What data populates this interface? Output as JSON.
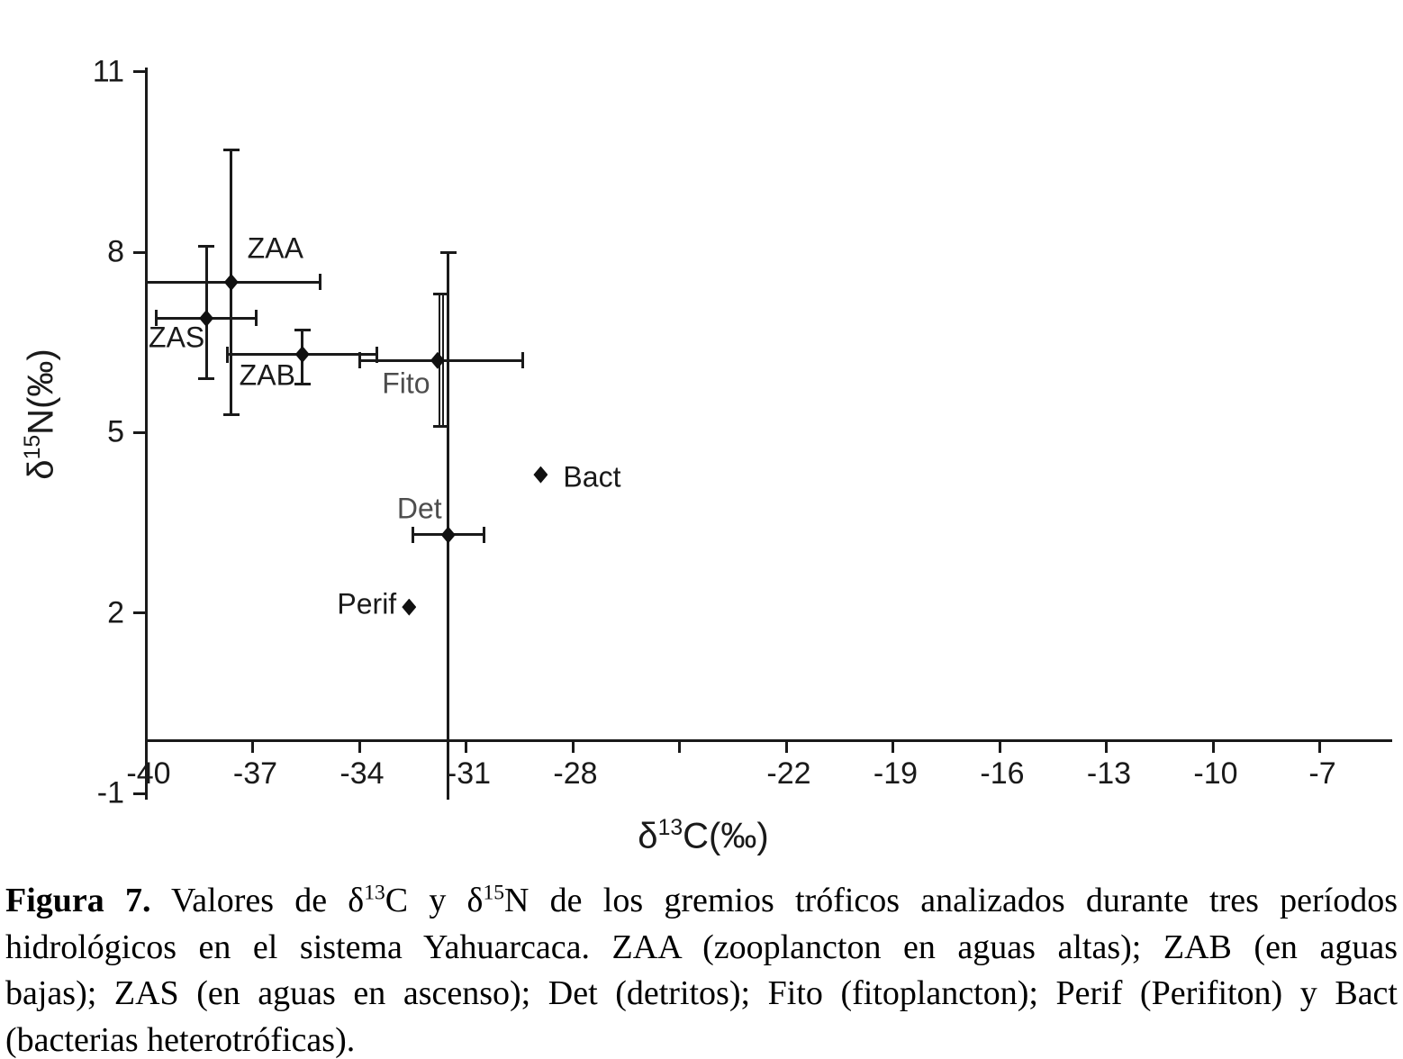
{
  "colors": {
    "background": "#ffffff",
    "axis": "#1a1a1a",
    "marker": "#111111",
    "label_dark": "#1a1a1a",
    "label_gray": "#4d4d4d",
    "caption_text": "#000000"
  },
  "chart_data": {
    "type": "scatter",
    "title": "",
    "xlabel": "δ13C(‰)",
    "ylabel": "δ15N(‰)",
    "xlabel_segments": [
      {
        "t": "δ"
      },
      {
        "t": "13",
        "sup": true
      },
      {
        "t": "C(‰)"
      }
    ],
    "ylabel_segments": [
      {
        "t": "δ"
      },
      {
        "t": "15",
        "sup": true
      },
      {
        "t": "N(‰)"
      }
    ],
    "xlim": [
      -40,
      -5
    ],
    "ylim": [
      -1,
      11
    ],
    "grid": false,
    "legend": "none",
    "x_ticks": [
      {
        "value": -40,
        "label": "-40"
      },
      {
        "value": -37,
        "label": "-37"
      },
      {
        "value": -34,
        "label": "-34"
      },
      {
        "value": -31,
        "label": "-31"
      },
      {
        "value": -28,
        "label": "-28"
      },
      {
        "value": -25,
        "label": ""
      },
      {
        "value": -22,
        "label": "-22"
      },
      {
        "value": -19,
        "label": "-19"
      },
      {
        "value": -16,
        "label": "-16"
      },
      {
        "value": -13,
        "label": "-13"
      },
      {
        "value": -10,
        "label": "-10"
      },
      {
        "value": -7,
        "label": "-7"
      }
    ],
    "y_ticks": [
      {
        "value": 11,
        "label": "11"
      },
      {
        "value": 8,
        "label": "8"
      },
      {
        "value": 5,
        "label": "5"
      },
      {
        "value": 2,
        "label": "2"
      },
      {
        "value": -1,
        "label": "-1"
      }
    ],
    "series": [
      {
        "name": "ZAA",
        "label": "ZAA",
        "x": -37.6,
        "y": 7.5,
        "x_err": [
          -40.0,
          -35.1
        ],
        "y_err": [
          5.3,
          9.7
        ],
        "caps": {
          "left": false,
          "right": true,
          "top": true,
          "bottom": true
        },
        "label_color": "dark",
        "label_offset": [
          49,
          -37
        ]
      },
      {
        "name": "ZAS",
        "label": "ZAS",
        "x": -38.3,
        "y": 6.9,
        "x_err": [
          -39.7,
          -36.9
        ],
        "y_err": [
          5.9,
          8.1
        ],
        "caps": {
          "left": true,
          "right": true,
          "top": true,
          "bottom": true
        },
        "label_color": "dark",
        "label_offset": [
          -33,
          22
        ]
      },
      {
        "name": "ZAB",
        "label": "ZAB",
        "x": -35.6,
        "y": 6.3,
        "x_err": [
          -37.7,
          -33.5
        ],
        "y_err": [
          5.8,
          6.7
        ],
        "caps": {
          "left": true,
          "right": true,
          "top": true,
          "bottom": true
        },
        "label_color": "dark",
        "label_offset": [
          -39,
          23
        ]
      },
      {
        "name": "Fito",
        "label": "Fito",
        "x": -31.8,
        "y": 6.2,
        "x_err": [
          -34.0,
          -29.4
        ],
        "y_err": [
          5.1,
          7.3
        ],
        "caps": {
          "left": true,
          "right": true,
          "top": true,
          "bottom": true
        },
        "double_y_bar": true,
        "label_color": "gray",
        "label_offset": [
          -35,
          26
        ]
      },
      {
        "name": "Det",
        "label": "Det",
        "x": -31.5,
        "y": 3.3,
        "x_err": [
          -32.5,
          -30.5
        ],
        "y_err": [
          -1.1,
          8.0
        ],
        "caps": {
          "left": true,
          "right": true,
          "top": true,
          "bottom": false
        },
        "label_color": "gray",
        "label_offset": [
          -32,
          -29
        ]
      },
      {
        "name": "Bact",
        "label": "Bact",
        "x": -28.9,
        "y": 4.3,
        "label_color": "dark",
        "label_offset": [
          57,
          3
        ]
      },
      {
        "name": "Perif",
        "label": "Perif",
        "x": -32.6,
        "y": 2.1,
        "label_color": "dark",
        "label_offset": [
          -47,
          -3
        ]
      }
    ]
  },
  "caption": {
    "lines": [
      {
        "segments": [
          {
            "t": "Figura 7.",
            "bold": true
          },
          {
            "t": " Valores de δ"
          },
          {
            "t": "13",
            "sup": true
          },
          {
            "t": "C y δ"
          },
          {
            "t": "15",
            "sup": true
          },
          {
            "t": "N de los gremios tróficos analizados durante tres períodos"
          }
        ]
      },
      {
        "segments": [
          {
            "t": "hidrológicos en el sistema Yahuarcaca. ZAA (zooplancton en aguas altas); ZAB (en aguas"
          }
        ]
      },
      {
        "segments": [
          {
            "t": "bajas); ZAS (en aguas en ascenso); Det (detritos); Fito (fitoplancton); Perif (Perifiton) y Bact"
          }
        ]
      },
      {
        "segments": [
          {
            "t": "(bacterias heterotróficas)."
          }
        ]
      }
    ]
  }
}
